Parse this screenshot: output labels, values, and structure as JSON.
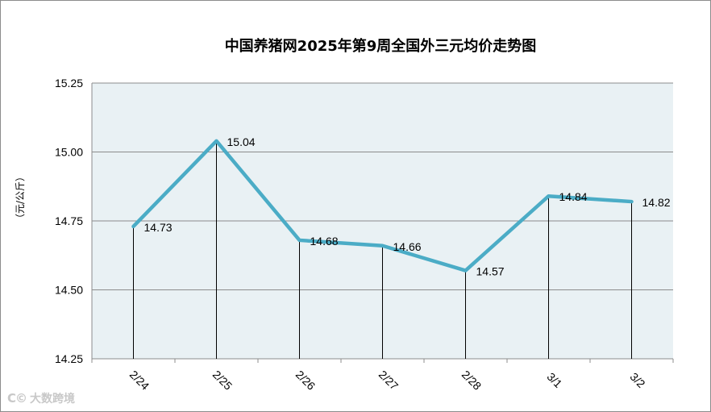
{
  "chart_data": {
    "type": "line",
    "title": "中国养猪网2025年第9周全国外三元均价走势图",
    "ylabel": "（元/公斤）",
    "xlabel": "",
    "categories": [
      "2/24",
      "2/25",
      "2/26",
      "2/27",
      "2/28",
      "3/1",
      "3/2"
    ],
    "series": [
      {
        "values": [
          14.73,
          15.04,
          14.68,
          14.66,
          14.57,
          14.84,
          14.82
        ]
      }
    ],
    "data_labels": [
      "14.73",
      "15.04",
      "14.68",
      "14.66",
      "14.57",
      "14.84",
      "14.82"
    ],
    "y_ticks": [
      "15.25",
      "15.00",
      "14.75",
      "14.50",
      "14.25"
    ],
    "ylim": [
      14.25,
      15.25
    ],
    "grid": true,
    "drop_lines": true,
    "colors": {
      "line": "#4bacc6",
      "plot_bg": "#e9f1f4",
      "grid": "#8c8c8c"
    }
  },
  "watermark": {
    "mark": "C©",
    "text": "大数跨境"
  }
}
